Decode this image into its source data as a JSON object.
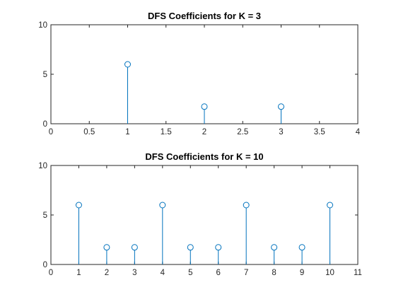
{
  "chart_data": [
    {
      "type": "stem",
      "title": "DFS Coefficients for K = 3",
      "xlabel": "",
      "ylabel": "",
      "xlim": [
        0,
        4
      ],
      "ylim": [
        0,
        10
      ],
      "xticks": [
        0,
        0.5,
        1,
        1.5,
        2,
        2.5,
        3,
        3.5,
        4
      ],
      "xtick_labels": [
        "0",
        "0.5",
        "1",
        "1.5",
        "2",
        "2.5",
        "3",
        "3.5",
        "4"
      ],
      "yticks": [
        0,
        5,
        10
      ],
      "ytick_labels": [
        "0",
        "5",
        "10"
      ],
      "grid": false,
      "series": [
        {
          "x": [
            1,
            2,
            3
          ],
          "y": [
            6,
            1.73,
            1.73
          ],
          "color": "#0072BD",
          "marker": "circle"
        }
      ]
    },
    {
      "type": "stem",
      "title": "DFS Coefficients for K = 10",
      "xlabel": "",
      "ylabel": "",
      "xlim": [
        0,
        11
      ],
      "ylim": [
        0,
        10
      ],
      "xticks": [
        0,
        1,
        2,
        3,
        4,
        5,
        6,
        7,
        8,
        9,
        10,
        11
      ],
      "xtick_labels": [
        "0",
        "1",
        "2",
        "3",
        "4",
        "5",
        "6",
        "7",
        "8",
        "9",
        "10",
        "11"
      ],
      "yticks": [
        0,
        5,
        10
      ],
      "ytick_labels": [
        "0",
        "5",
        "10"
      ],
      "grid": false,
      "series": [
        {
          "x": [
            1,
            2,
            3,
            4,
            5,
            6,
            7,
            8,
            9,
            10
          ],
          "y": [
            6,
            1.73,
            1.73,
            6,
            1.73,
            1.73,
            6,
            1.73,
            1.73,
            6
          ],
          "color": "#0072BD",
          "marker": "circle"
        }
      ]
    }
  ]
}
